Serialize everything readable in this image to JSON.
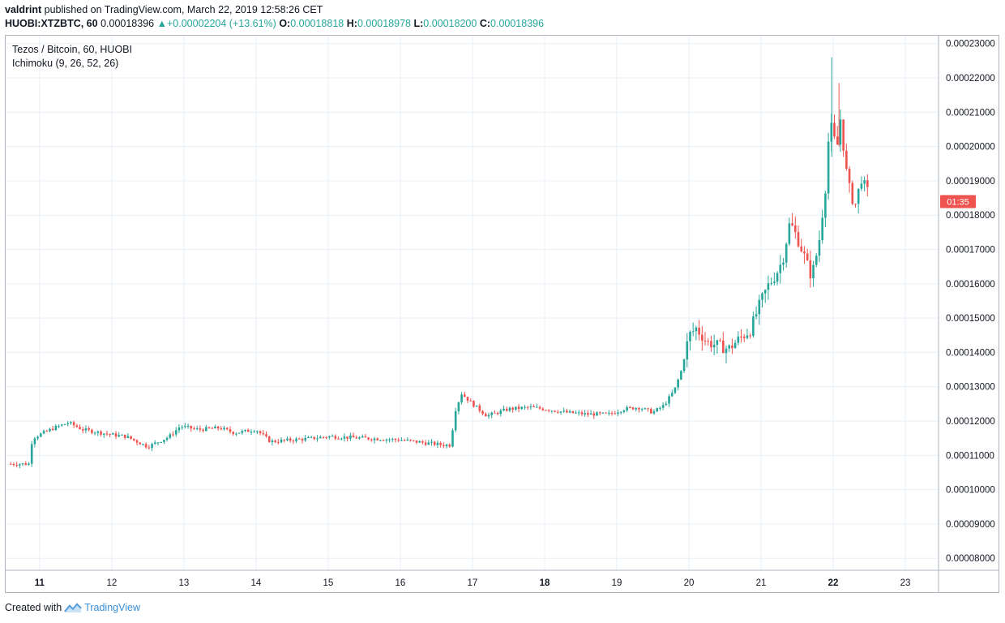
{
  "header": {
    "username": "valdrint",
    "published_text": "published on TradingView.com, March 22, 2019 12:58:26 CET",
    "symbol_line": "HUOBI:XTZBTC, 60",
    "last_price": "0.00018396",
    "change": "+0.00002204 (+13.61%)",
    "o_label": "O:",
    "o_value": "0.00018818",
    "h_label": "H:",
    "h_value": "0.00018978",
    "l_label": "L:",
    "l_value": "0.00018200",
    "c_label": "C:",
    "c_value": "0.00018396"
  },
  "legend": {
    "pair": "Tezos / Bitcoin, 60, HUOBI",
    "indicator": "Ichimoku (9, 26, 52, 26)"
  },
  "footer": {
    "created_with": "Created with",
    "brand": "TradingView"
  },
  "colors": {
    "up": "#26a69a",
    "down": "#ef5350",
    "grid": "#e9eff5",
    "price_tag": "#ef5350"
  },
  "chart_data": {
    "type": "candlestick",
    "title": "Tezos / Bitcoin, 60, HUOBI",
    "xlabel": "",
    "ylabel": "",
    "x_ticks": [
      "11",
      "12",
      "13",
      "14",
      "15",
      "16",
      "17",
      "18",
      "19",
      "20",
      "21",
      "22",
      "23"
    ],
    "y_ticks": [
      "0.00023000",
      "0.00022000",
      "0.00021000",
      "0.00020000",
      "0.00019000",
      "0.00018000",
      "0.00017000",
      "0.00016000",
      "0.00015000",
      "0.00014000",
      "0.00013000",
      "0.00012000",
      "0.00011000",
      "0.00010000",
      "0.00009000",
      "0.00008000"
    ],
    "ylim": [
      7.65e-05,
      0.0002323
    ],
    "xlim": [
      10.53,
      23.46
    ],
    "grid": true,
    "current_price_label": "01:35",
    "current_price": 0.00018396,
    "series": [
      {
        "name": "XTZBTC",
        "points": [
          {
            "t": 10.6,
            "close": 0.0001075
          },
          {
            "t": 10.85,
            "close": 0.0001075
          },
          {
            "t": 10.9,
            "close": 0.000115
          },
          {
            "t": 11.2,
            "close": 0.000118
          },
          {
            "t": 11.4,
            "close": 0.0001195
          },
          {
            "t": 11.6,
            "close": 0.0001175
          },
          {
            "t": 12.0,
            "close": 0.000116
          },
          {
            "t": 12.2,
            "close": 0.0001155
          },
          {
            "t": 12.5,
            "close": 0.0001125
          },
          {
            "t": 12.8,
            "close": 0.0001155
          },
          {
            "t": 12.95,
            "close": 0.0001185
          },
          {
            "t": 13.2,
            "close": 0.0001175
          },
          {
            "t": 13.5,
            "close": 0.000118
          },
          {
            "t": 13.7,
            "close": 0.0001165
          },
          {
            "t": 14.0,
            "close": 0.0001175
          },
          {
            "t": 14.2,
            "close": 0.000114
          },
          {
            "t": 14.5,
            "close": 0.0001145
          },
          {
            "t": 14.8,
            "close": 0.000115
          },
          {
            "t": 15.0,
            "close": 0.0001155
          },
          {
            "t": 15.5,
            "close": 0.000115
          },
          {
            "t": 16.0,
            "close": 0.0001145
          },
          {
            "t": 16.2,
            "close": 0.000114
          },
          {
            "t": 16.6,
            "close": 0.000113
          },
          {
            "t": 16.7,
            "close": 0.000113
          },
          {
            "t": 16.75,
            "close": 0.0001225
          },
          {
            "t": 16.85,
            "close": 0.000128
          },
          {
            "t": 17.0,
            "close": 0.000125
          },
          {
            "t": 17.2,
            "close": 0.0001215
          },
          {
            "t": 17.5,
            "close": 0.0001235
          },
          {
            "t": 17.8,
            "close": 0.000124
          },
          {
            "t": 18.0,
            "close": 0.0001235
          },
          {
            "t": 18.3,
            "close": 0.0001225
          },
          {
            "t": 18.6,
            "close": 0.000122
          },
          {
            "t": 18.9,
            "close": 0.000122
          },
          {
            "t": 19.1,
            "close": 0.0001235
          },
          {
            "t": 19.3,
            "close": 0.000124
          },
          {
            "t": 19.5,
            "close": 0.0001225
          },
          {
            "t": 19.65,
            "close": 0.0001245
          },
          {
            "t": 19.8,
            "close": 0.000129
          },
          {
            "t": 19.9,
            "close": 0.000135
          },
          {
            "t": 20.0,
            "close": 0.000145
          },
          {
            "t": 20.1,
            "close": 0.000147
          },
          {
            "t": 20.25,
            "close": 0.000143
          },
          {
            "t": 20.4,
            "close": 0.000142
          },
          {
            "t": 20.55,
            "close": 0.000141
          },
          {
            "t": 20.7,
            "close": 0.000144
          },
          {
            "t": 20.85,
            "close": 0.0001465
          },
          {
            "t": 21.0,
            "close": 0.000155
          },
          {
            "t": 21.1,
            "close": 0.0001595
          },
          {
            "t": 21.2,
            "close": 0.0001625
          },
          {
            "t": 21.3,
            "close": 0.000167
          },
          {
            "t": 21.4,
            "close": 0.000178
          },
          {
            "t": 21.5,
            "close": 0.0001735
          },
          {
            "t": 21.6,
            "close": 0.000168
          },
          {
            "t": 21.7,
            "close": 0.000162
          },
          {
            "t": 21.8,
            "close": 0.0001715
          },
          {
            "t": 21.9,
            "close": 0.0001895
          },
          {
            "t": 21.95,
            "close": 0.0002075
          },
          {
            "t": 22.05,
            "close": 0.000199
          },
          {
            "t": 22.1,
            "close": 0.000208
          },
          {
            "t": 22.2,
            "close": 0.0001895
          },
          {
            "t": 22.3,
            "close": 0.0001825
          },
          {
            "t": 22.4,
            "close": 0.0001915
          },
          {
            "t": 22.45,
            "close": 0.000187
          },
          {
            "t": 22.5,
            "close": 0.0001865
          }
        ]
      }
    ]
  }
}
